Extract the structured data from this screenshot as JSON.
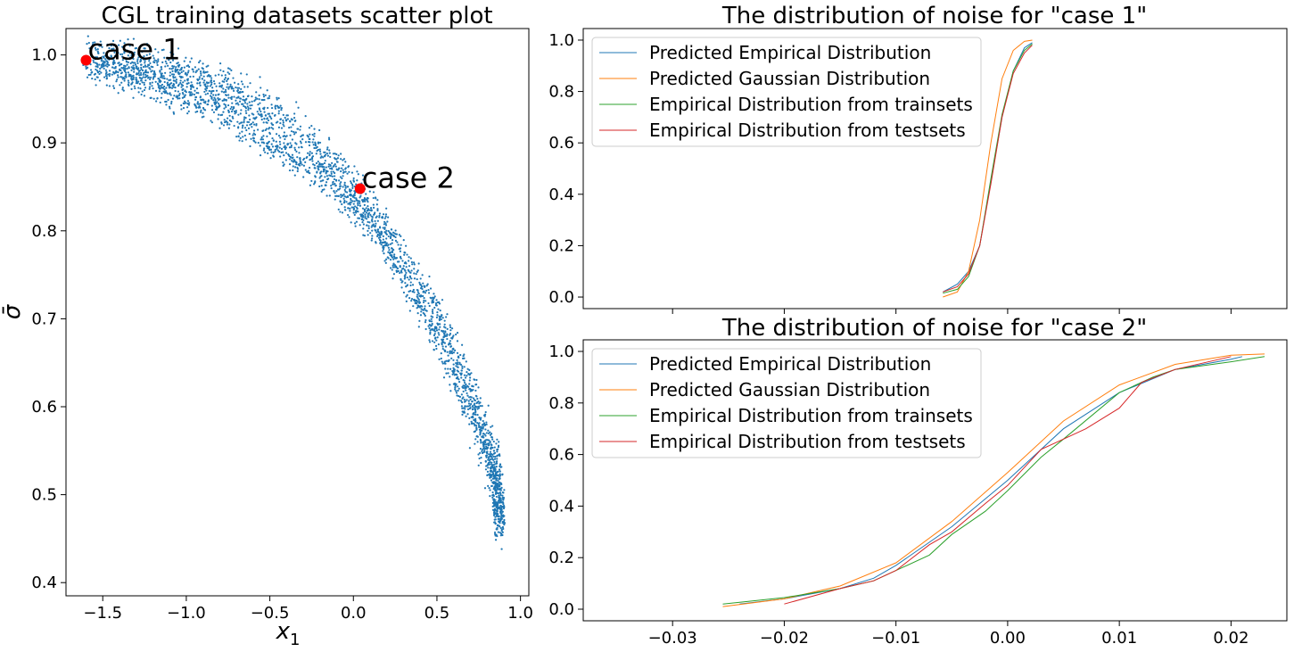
{
  "figure": {
    "panels": [
      {
        "title": "CGL training datasets scatter plot",
        "xlabel": "x",
        "xlabel_sub": "1",
        "ylabel": "σ̄"
      },
      {
        "title": "The distribution of noise for \"case 1\""
      },
      {
        "title": "The distribution of noise for \"case 2\""
      }
    ]
  },
  "chart_data": [
    {
      "type": "scatter",
      "title": "CGL training datasets scatter plot",
      "xlabel": "x₁",
      "ylabel": "σ̄",
      "xlim": [
        -1.72,
        1.05
      ],
      "ylim": [
        0.385,
        1.03
      ],
      "xticks": [
        -1.5,
        -1.0,
        -0.5,
        0.0,
        0.5,
        1.0
      ],
      "xtick_labels": [
        "−1.5",
        "−1.0",
        "−0.5",
        "0.0",
        "0.5",
        "1.0"
      ],
      "yticks": [
        0.4,
        0.5,
        0.6,
        0.7,
        0.8,
        0.9,
        1.0
      ],
      "ytick_labels": [
        "0.4",
        "0.5",
        "0.6",
        "0.7",
        "0.8",
        "0.9",
        "1.0"
      ],
      "color": "#1f77b4",
      "highlight_color": "#ff0000",
      "bands": [
        {
          "name": "",
          "x": [
            -1.6,
            -1.3,
            -1.0,
            -0.7,
            -0.4,
            -0.1,
            0.2,
            0.5,
            0.7,
            0.85,
            0.88
          ],
          "y": [
            1.0,
            0.992,
            0.978,
            0.958,
            0.925,
            0.875,
            0.8,
            0.71,
            0.62,
            0.54,
            0.48
          ],
          "width": 0.022
        },
        {
          "name": "",
          "x": [
            -1.6,
            -1.3,
            -1.0,
            -0.7,
            -0.4,
            -0.1,
            0.1,
            0.3,
            0.55,
            0.75,
            0.86,
            0.88
          ],
          "y": [
            0.99,
            0.976,
            0.955,
            0.925,
            0.89,
            0.85,
            0.81,
            0.75,
            0.66,
            0.57,
            0.5,
            0.46
          ],
          "width": 0.02
        }
      ],
      "highlights": [
        {
          "label": "case 1",
          "x": -1.6,
          "y": 0.994
        },
        {
          "label": "case 2",
          "x": 0.04,
          "y": 0.848
        }
      ]
    },
    {
      "type": "line",
      "title": "The distribution of noise for \"case 1\"",
      "xlim": [
        -0.038,
        0.025
      ],
      "ylim": [
        -0.045,
        1.045
      ],
      "xticks": [
        -0.03,
        -0.02,
        -0.01,
        0.0,
        0.01,
        0.02
      ],
      "yticks": [
        0.0,
        0.2,
        0.4,
        0.6,
        0.8,
        1.0
      ],
      "ytick_labels": [
        "0.0",
        "0.2",
        "0.4",
        "0.6",
        "0.8",
        "1.0"
      ],
      "legend_position": "top-left",
      "series": [
        {
          "name": "Predicted Empirical Distribution",
          "color": "#1f77b4",
          "x": [
            -0.0058,
            -0.0045,
            -0.0035,
            -0.0025,
            -0.0015,
            -0.0005,
            0.0005,
            0.0015,
            0.0022
          ],
          "y": [
            0.02,
            0.05,
            0.1,
            0.2,
            0.45,
            0.7,
            0.88,
            0.97,
            0.99
          ]
        },
        {
          "name": "Predicted Gaussian Distribution",
          "color": "#ff7f0e",
          "x": [
            -0.0058,
            -0.0045,
            -0.0035,
            -0.0025,
            -0.0015,
            -0.0005,
            0.0005,
            0.0015,
            0.0022
          ],
          "y": [
            0.0,
            0.02,
            0.1,
            0.3,
            0.6,
            0.85,
            0.96,
            0.995,
            1.0
          ]
        },
        {
          "name": "Empirical Distribution from trainsets",
          "color": "#2ca02c",
          "x": [
            -0.0058,
            -0.0045,
            -0.0035,
            -0.0025,
            -0.0015,
            -0.0005,
            0.0005,
            0.0015,
            0.0022
          ],
          "y": [
            0.015,
            0.03,
            0.08,
            0.2,
            0.46,
            0.71,
            0.88,
            0.96,
            0.985
          ]
        },
        {
          "name": "Empirical Distribution from testsets",
          "color": "#d62728",
          "x": [
            -0.0058,
            -0.0045,
            -0.0035,
            -0.0025,
            -0.0015,
            -0.0005,
            0.0005,
            0.0015,
            0.0022
          ],
          "y": [
            0.02,
            0.04,
            0.09,
            0.2,
            0.44,
            0.7,
            0.87,
            0.95,
            0.98
          ]
        }
      ]
    },
    {
      "type": "line",
      "title": "The distribution of noise for \"case 2\"",
      "xlim": [
        -0.038,
        0.025
      ],
      "ylim": [
        -0.045,
        1.045
      ],
      "xticks": [
        -0.03,
        -0.02,
        -0.01,
        0.0,
        0.01,
        0.02
      ],
      "xtick_labels": [
        "−0.03",
        "−0.02",
        "−0.01",
        "0.00",
        "0.01",
        "0.02"
      ],
      "yticks": [
        0.0,
        0.2,
        0.4,
        0.6,
        0.8,
        1.0
      ],
      "ytick_labels": [
        "0.0",
        "0.2",
        "0.4",
        "0.6",
        "0.8",
        "1.0"
      ],
      "legend_position": "top-left",
      "series": [
        {
          "name": "Predicted Empirical Distribution",
          "color": "#1f77b4",
          "x": [
            -0.024,
            -0.02,
            -0.015,
            -0.012,
            -0.01,
            -0.005,
            0.0,
            0.005,
            0.01,
            0.015,
            0.02,
            0.021
          ],
          "y": [
            0.02,
            0.04,
            0.08,
            0.12,
            0.17,
            0.32,
            0.5,
            0.7,
            0.84,
            0.93,
            0.97,
            0.98
          ]
        },
        {
          "name": "Predicted Gaussian Distribution",
          "color": "#ff7f0e",
          "x": [
            -0.0255,
            -0.02,
            -0.015,
            -0.01,
            -0.005,
            0.0,
            0.005,
            0.01,
            0.015,
            0.02,
            0.023
          ],
          "y": [
            0.01,
            0.04,
            0.09,
            0.18,
            0.34,
            0.53,
            0.73,
            0.87,
            0.95,
            0.985,
            0.99
          ]
        },
        {
          "name": "Empirical Distribution from trainsets",
          "color": "#2ca02c",
          "x": [
            -0.0255,
            -0.02,
            -0.015,
            -0.012,
            -0.01,
            -0.007,
            -0.005,
            -0.002,
            0.0,
            0.003,
            0.005,
            0.01,
            0.013,
            0.015,
            0.02,
            0.023
          ],
          "y": [
            0.02,
            0.045,
            0.08,
            0.11,
            0.15,
            0.21,
            0.29,
            0.38,
            0.46,
            0.59,
            0.66,
            0.84,
            0.9,
            0.93,
            0.96,
            0.98
          ]
        },
        {
          "name": "Empirical Distribution from testsets",
          "color": "#d62728",
          "x": [
            -0.02,
            -0.015,
            -0.012,
            -0.01,
            -0.007,
            -0.005,
            -0.002,
            0.0,
            0.003,
            0.005,
            0.007,
            0.01,
            0.012,
            0.015,
            0.02
          ],
          "y": [
            0.02,
            0.08,
            0.11,
            0.15,
            0.25,
            0.3,
            0.41,
            0.48,
            0.62,
            0.66,
            0.7,
            0.78,
            0.88,
            0.93,
            0.98
          ]
        }
      ]
    }
  ]
}
